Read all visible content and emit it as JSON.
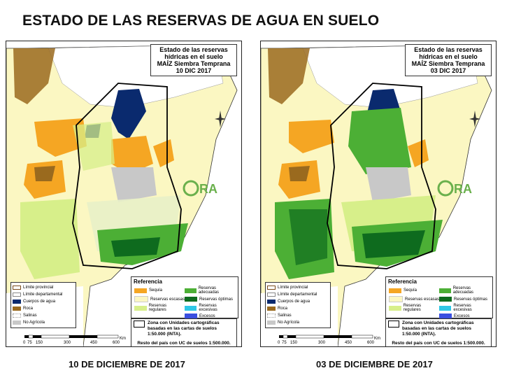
{
  "main_title": "ESTADO DE LAS RESERVAS DE AGUA EN SUELO",
  "maps": [
    {
      "title_lines": [
        "Estado de las reservas",
        "hídricas en el suelo",
        "MAÍZ Siembra Temprana",
        "10 DIC 2017"
      ],
      "caption": "10 DE DICIEMBRE DE 2017"
    },
    {
      "title_lines": [
        "Estado de las reservas",
        "hídricas en el suelo",
        "MAÍZ Siembra Temprana",
        "03 DIC 2017"
      ],
      "caption": "03 DE DICIEMBRE DE 2017"
    }
  ],
  "legend_left": [
    {
      "label": "Límite provincial",
      "color": "#ffffff",
      "border": "#7a4a1a"
    },
    {
      "label": "Límite departamental",
      "color": "#ffffff",
      "border": "#888888"
    },
    {
      "label": "Cuerpos de agua",
      "color": "#0a2a6e",
      "border": "#0a2a6e"
    },
    {
      "label": "Roca",
      "color": "#9a6a1e",
      "border": "#9a6a1e"
    },
    {
      "label": "Salinas",
      "color": "#ffffff",
      "border": "#999999"
    },
    {
      "label": "No Agrícola",
      "color": "#c8c8c8",
      "border": "#c8c8c8"
    }
  ],
  "legend_ref": {
    "header": "Referencia",
    "items": [
      {
        "label": "Sequía",
        "color": "#f5a623"
      },
      {
        "label": "Reservas adecuadas",
        "color": "#4caf35"
      },
      {
        "label": "Reservas escasas",
        "color": "#fbf7c2"
      },
      {
        "label": "Reservas óptimas",
        "color": "#0e6b1e"
      },
      {
        "label": "Reservas regulares",
        "color": "#d7ef8a"
      },
      {
        "label": "Reservas excesivas",
        "color": "#2ec7e6"
      },
      {
        "label": "Excesos",
        "color": "#3a4fe0"
      }
    ]
  },
  "zone_text": "Zona con Unidades cartográficas basadas en las cartas de suelos 1:50.000 (INTA).",
  "rest_text": "Resto del país con UC de suelos 1:500.000.",
  "scale": {
    "unit": "Km",
    "ticks": [
      "0",
      "75",
      "150",
      "300",
      "450",
      "600"
    ]
  },
  "logo_text": "ORA",
  "compass_labels": {
    "n": "N",
    "s": "S",
    "e": "E",
    "w": "W"
  }
}
